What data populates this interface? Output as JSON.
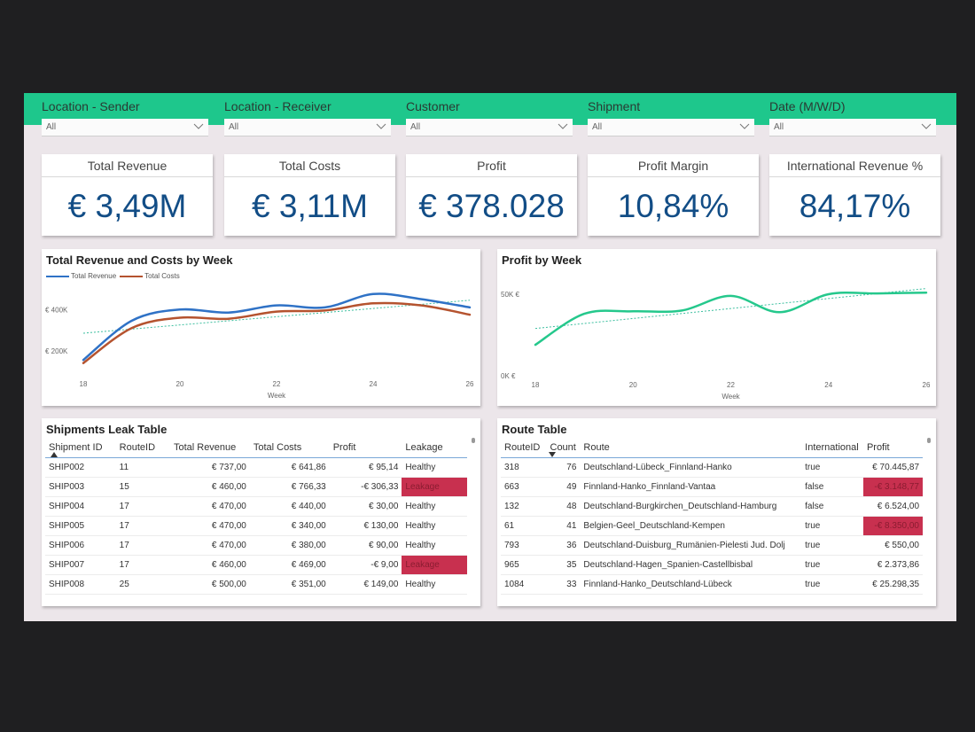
{
  "filters": [
    {
      "label": "Location - Sender",
      "value": "All"
    },
    {
      "label": "Location - Receiver",
      "value": "All"
    },
    {
      "label": "Customer",
      "value": "All"
    },
    {
      "label": "Shipment",
      "value": "All"
    },
    {
      "label": "Date (M/W/D)",
      "value": "All"
    }
  ],
  "kpis": [
    {
      "title": "Total Revenue",
      "value": "€ 3,49M"
    },
    {
      "title": "Total Costs",
      "value": "€ 3,11M"
    },
    {
      "title": "Profit",
      "value": "€ 378.028"
    },
    {
      "title": "Profit Margin",
      "value": "10,84%"
    },
    {
      "title": "International Revenue %",
      "value": "84,17%"
    }
  ],
  "colors": {
    "brand_green": "#1ec78c",
    "kpi_blue": "#124d86",
    "revenue_line": "#2f72c6",
    "costs_line": "#b5532f",
    "profit_line": "#25c88c",
    "trend_line": "#3cbf9f",
    "alert_red": "#c8304f"
  },
  "chart_data": [
    {
      "type": "line",
      "title": "Total Revenue and Costs by Week",
      "xlabel": "Week",
      "ylabel": "",
      "x": [
        18,
        19,
        20,
        21,
        22,
        23,
        24,
        25,
        26
      ],
      "xticks": [
        "18",
        "20",
        "22",
        "24",
        "26"
      ],
      "yticks": [
        "€ 200K",
        "€ 400K"
      ],
      "ylim": [
        100000,
        500000
      ],
      "series": [
        {
          "name": "Total Revenue",
          "values": [
            155000,
            345000,
            400000,
            385000,
            420000,
            410000,
            475000,
            450000,
            410000
          ]
        },
        {
          "name": "Total Costs",
          "values": [
            140000,
            310000,
            360000,
            355000,
            390000,
            395000,
            430000,
            420000,
            375000
          ]
        }
      ],
      "trendline": {
        "values": [
          285000,
          445000
        ]
      },
      "legend": "top-left"
    },
    {
      "type": "line",
      "title": "Profit by Week",
      "xlabel": "Week",
      "ylabel": "",
      "x": [
        18,
        19,
        20,
        21,
        22,
        23,
        24,
        25,
        26
      ],
      "xticks": [
        "18",
        "20",
        "22",
        "24",
        "26"
      ],
      "yticks": [
        "0K €",
        "50K €"
      ],
      "ylim": [
        0,
        56000
      ],
      "series": [
        {
          "name": "Profit",
          "values": [
            19000,
            38000,
            39500,
            40000,
            49000,
            39000,
            50000,
            50500,
            51000
          ]
        }
      ],
      "trendline": {
        "values": [
          29000,
          53500
        ]
      }
    }
  ],
  "leak_table": {
    "title": "Shipments Leak Table",
    "columns": [
      "Shipment ID",
      "RouteID",
      "Total Revenue",
      "Total Costs",
      "Profit",
      "Leakage"
    ],
    "rows": [
      [
        "SHIP002",
        "11",
        "€ 737,00",
        "€ 641,86",
        "€ 95,14",
        "Healthy"
      ],
      [
        "SHIP003",
        "15",
        "€ 460,00",
        "€ 766,33",
        "-€ 306,33",
        "Leakage"
      ],
      [
        "SHIP004",
        "17",
        "€ 470,00",
        "€ 440,00",
        "€ 30,00",
        "Healthy"
      ],
      [
        "SHIP005",
        "17",
        "€ 470,00",
        "€ 340,00",
        "€ 130,00",
        "Healthy"
      ],
      [
        "SHIP006",
        "17",
        "€ 470,00",
        "€ 380,00",
        "€ 90,00",
        "Healthy"
      ],
      [
        "SHIP007",
        "17",
        "€ 460,00",
        "€ 469,00",
        "-€ 9,00",
        "Leakage"
      ],
      [
        "SHIP008",
        "25",
        "€ 500,00",
        "€ 351,00",
        "€ 149,00",
        "Healthy"
      ]
    ]
  },
  "route_table": {
    "title": "Route Table",
    "columns": [
      "RouteID",
      "Count",
      "Route",
      "International",
      "Profit"
    ],
    "rows": [
      [
        "318",
        "76",
        "Deutschland-Lübeck_Finnland-Hanko",
        "true",
        "€ 70.445,87"
      ],
      [
        "663",
        "49",
        "Finnland-Hanko_Finnland-Vantaa",
        "false",
        "-€ 3.148,77"
      ],
      [
        "132",
        "48",
        "Deutschland-Burgkirchen_Deutschland-Hamburg",
        "false",
        "€ 6.524,00"
      ],
      [
        "61",
        "41",
        "Belgien-Geel_Deutschland-Kempen",
        "true",
        "-€ 8.350,00"
      ],
      [
        "793",
        "36",
        "Deutschland-Duisburg_Rumänien-Pielesti Jud. Dolj",
        "true",
        "€ 550,00"
      ],
      [
        "965",
        "35",
        "Deutschland-Hagen_Spanien-Castellbisbal",
        "true",
        "€ 2.373,86"
      ],
      [
        "1084",
        "33",
        "Finnland-Hanko_Deutschland-Lübeck",
        "true",
        "€ 25.298,35"
      ]
    ]
  }
}
